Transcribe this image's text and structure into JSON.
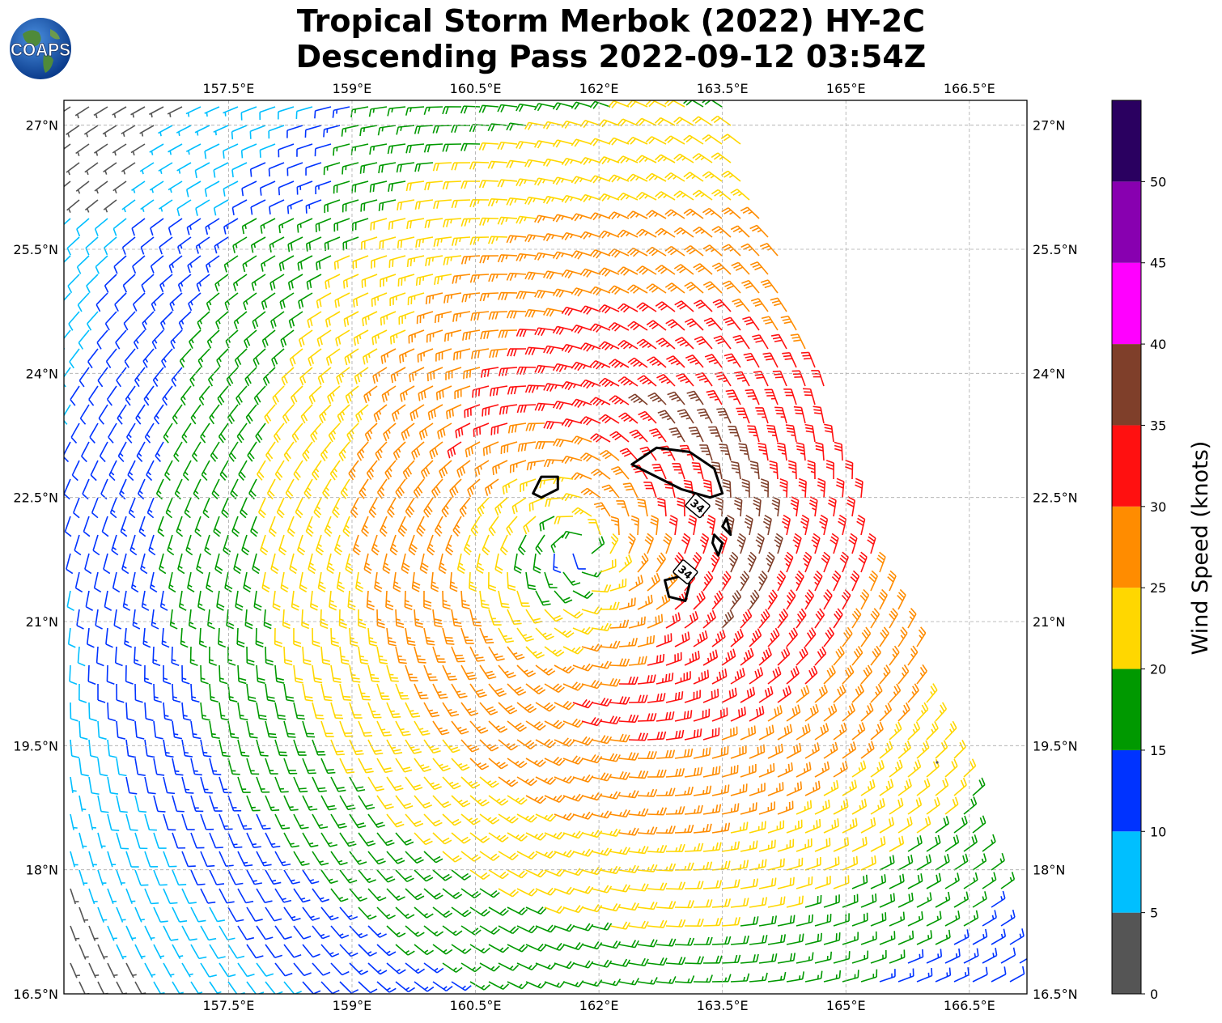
{
  "title": {
    "line1": "Tropical Storm Merbok (2022) HY-2C",
    "line2": "Descending Pass 2022-09-12 03:54Z"
  },
  "logo": {
    "text": "COAPS",
    "icon": "globe-icon"
  },
  "chart_data": {
    "type": "wind-barb-map",
    "lon_range": [
      155.5,
      167.2
    ],
    "lat_range": [
      16.5,
      27.3
    ],
    "lon_ticks": [
      "157.5°E",
      "159°E",
      "160.5°E",
      "162°E",
      "163.5°E",
      "165°E",
      "166.5°E"
    ],
    "lon_tick_values": [
      157.5,
      159,
      160.5,
      162,
      163.5,
      165,
      166.5
    ],
    "lat_ticks": [
      "27°N",
      "25.5°N",
      "24°N",
      "22.5°N",
      "21°N",
      "19.5°N",
      "18°N",
      "16.5°N"
    ],
    "lat_tick_values": [
      27,
      25.5,
      24,
      22.5,
      21,
      19.5,
      18,
      16.5
    ],
    "grid": true,
    "storm_center": {
      "lon": 161.8,
      "lat": 21.9
    },
    "swath_right_edge": [
      [
        163.6,
        27.3
      ],
      [
        164.2,
        25.5
      ],
      [
        164.9,
        23.5
      ],
      [
        165.5,
        21.8
      ],
      [
        166.2,
        20.0
      ],
      [
        166.8,
        18.3
      ],
      [
        167.3,
        16.5
      ]
    ],
    "contour_34kt": [
      [
        [
          162.4,
          22.9
        ],
        [
          162.7,
          23.1
        ],
        [
          163.1,
          23.05
        ],
        [
          163.4,
          22.85
        ],
        [
          163.5,
          22.55
        ],
        [
          163.35,
          22.5
        ],
        [
          163.0,
          22.6
        ],
        [
          162.7,
          22.75
        ],
        [
          162.4,
          22.9
        ]
      ],
      [
        [
          161.2,
          22.55
        ],
        [
          161.3,
          22.75
        ],
        [
          161.5,
          22.75
        ],
        [
          161.5,
          22.6
        ],
        [
          161.3,
          22.5
        ],
        [
          161.2,
          22.55
        ]
      ],
      [
        [
          162.8,
          21.5
        ],
        [
          162.85,
          21.3
        ],
        [
          163.05,
          21.25
        ],
        [
          163.1,
          21.45
        ],
        [
          163.0,
          21.55
        ],
        [
          162.8,
          21.5
        ]
      ],
      [
        [
          163.4,
          22.05
        ],
        [
          163.5,
          21.95
        ],
        [
          163.45,
          21.8
        ],
        [
          163.38,
          21.95
        ],
        [
          163.4,
          22.05
        ]
      ],
      [
        [
          163.55,
          22.25
        ],
        [
          163.6,
          22.05
        ],
        [
          163.5,
          22.15
        ],
        [
          163.55,
          22.25
        ]
      ]
    ],
    "contour_labels": [
      {
        "text": "34",
        "lon": 163.2,
        "lat": 22.4
      },
      {
        "text": "34",
        "lon": 163.05,
        "lat": 21.6
      }
    ],
    "colorbar": {
      "label": "Wind Speed (knots)",
      "bounds": [
        0,
        5,
        10,
        15,
        20,
        25,
        30,
        35,
        40,
        45,
        50,
        55
      ],
      "tick_labels": [
        "0",
        "5",
        "10",
        "15",
        "20",
        "25",
        "30",
        "35",
        "40",
        "45",
        "50"
      ],
      "colors": [
        "#555555",
        "#00bfff",
        "#0033ff",
        "#009900",
        "#ffd700",
        "#ff8c00",
        "#ff1010",
        "#7f3f2a",
        "#ff00ff",
        "#8800b0",
        "#2a0060"
      ]
    }
  }
}
